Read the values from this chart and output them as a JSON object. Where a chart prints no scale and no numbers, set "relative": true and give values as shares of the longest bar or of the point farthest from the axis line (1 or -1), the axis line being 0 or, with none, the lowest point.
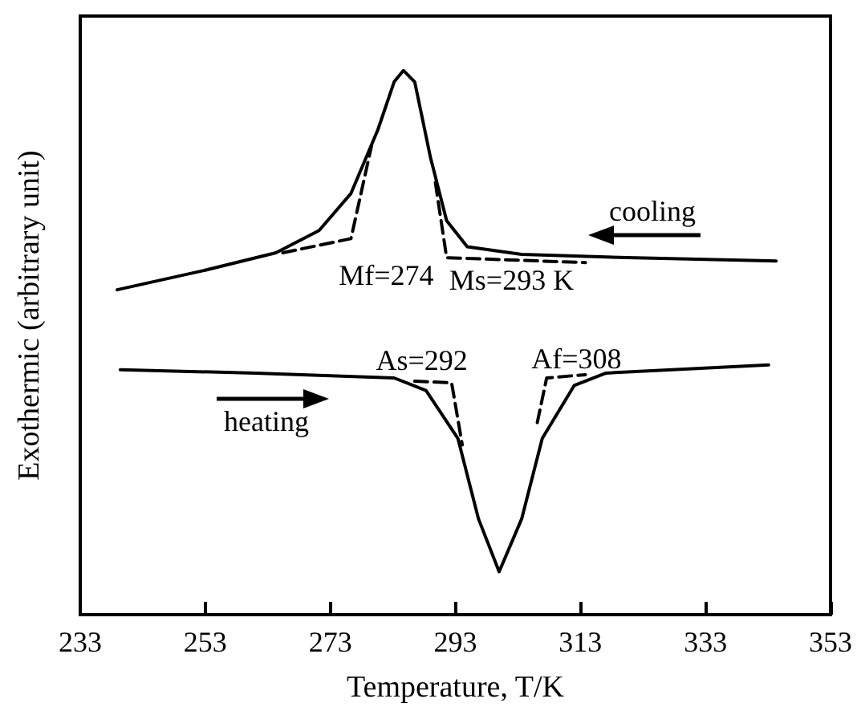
{
  "chart_data": {
    "type": "line",
    "relative": true,
    "xlabel": "Temperature, T/K",
    "ylabel": "Exothermic (arbitrary unit)",
    "xlim": [
      233,
      353
    ],
    "xticks": [
      233,
      253,
      273,
      293,
      313,
      333,
      353
    ],
    "grid": false,
    "marker": "none",
    "line_style": "solid",
    "series": [
      {
        "color": "#000000",
        "x": [
          238.9,
          252.6,
          264.3,
          271.2,
          276.3,
          280.6,
          283.2,
          284.7,
          286.5,
          289.0,
          291.6,
          294.9,
          303.6,
          320.4,
          344.3
        ],
        "values": [
          0.597,
          0.632,
          0.665,
          0.706,
          0.774,
          0.891,
          0.979,
          1.0,
          0.979,
          0.841,
          0.724,
          0.676,
          0.662,
          0.656,
          0.65
        ]
      },
      {
        "color": "#000000",
        "line_style": "dashed",
        "x": [
          265.4,
          276.3,
          279.6
        ],
        "values": [
          0.665,
          0.691,
          0.862
        ]
      },
      {
        "color": "#000000",
        "line_style": "dashed",
        "x": [
          289.8,
          291.6,
          313.8
        ],
        "values": [
          0.794,
          0.656,
          0.647
        ]
      },
      {
        "color": "#000000",
        "x": [
          239.4,
          261.0,
          283.2,
          288.3,
          293.4,
          296.7,
          300.0,
          303.6,
          306.9,
          312.0,
          317.1,
          343.1
        ],
        "values": [
          0.45,
          0.444,
          0.435,
          0.412,
          0.324,
          0.176,
          0.079,
          0.176,
          0.324,
          0.421,
          0.444,
          0.459
        ]
      },
      {
        "color": "#000000",
        "line_style": "dashed",
        "x": [
          286.5,
          292.4,
          294.1
        ],
        "values": [
          0.429,
          0.426,
          0.312
        ]
      },
      {
        "color": "#000000",
        "line_style": "dashed",
        "x": [
          306.1,
          307.6,
          313.8
        ],
        "values": [
          0.353,
          0.435,
          0.441
        ]
      }
    ],
    "annotations": [
      {
        "text": "Mf=274",
        "x": 274,
        "y": 0.691
      },
      {
        "text": "Ms=293 K",
        "x": 293,
        "y": 0.656
      },
      {
        "text": "As=292",
        "x": 292,
        "y": 0.426
      },
      {
        "text": "Af=308",
        "x": 308,
        "y": 0.435
      },
      "cooling",
      "heating"
    ]
  }
}
